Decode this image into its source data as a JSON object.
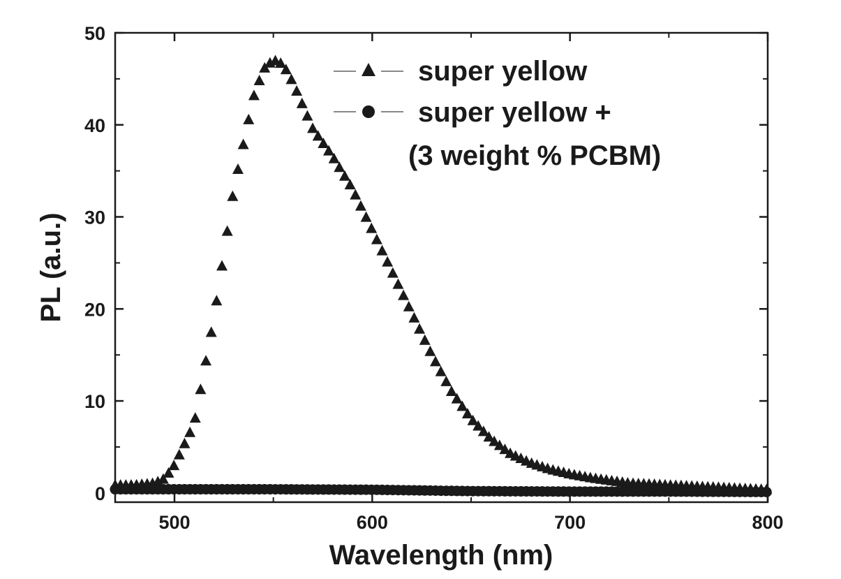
{
  "chart_data": {
    "type": "scatter",
    "title": "",
    "xlabel": "Wavelength (nm)",
    "ylabel": "PL (a.u.)",
    "xlim": [
      470,
      800
    ],
    "ylim": [
      -1,
      50
    ],
    "xticks": [
      500,
      600,
      700,
      800
    ],
    "xtick_labels": [
      "500",
      "600",
      "700",
      "800"
    ],
    "yticks": [
      0,
      10,
      20,
      30,
      40,
      50
    ],
    "ytick_labels": [
      "0",
      "10",
      "20",
      "30",
      "40",
      "50"
    ],
    "grid": false,
    "legend_position": "top-right",
    "marker_color": "#1a1a1a",
    "series": [
      {
        "name": "super yellow",
        "marker": "triangle",
        "x": [
          470,
          480,
          490,
          495,
          500,
          510,
          520,
          530,
          540,
          545,
          550,
          555,
          560,
          570,
          580,
          590,
          600,
          610,
          620,
          630,
          640,
          650,
          660,
          670,
          680,
          690,
          700,
          710,
          720,
          730,
          740,
          750,
          760,
          770,
          780,
          790,
          800
        ],
        "y": [
          0.8,
          0.8,
          1.0,
          1.5,
          3.0,
          7.5,
          19.0,
          33.0,
          43.0,
          46.0,
          47.0,
          46.5,
          44.5,
          39.5,
          36.5,
          33.0,
          28.5,
          24.0,
          19.5,
          15.0,
          11.0,
          8.0,
          5.8,
          4.2,
          3.2,
          2.5,
          2.0,
          1.6,
          1.3,
          1.0,
          0.9,
          0.8,
          0.7,
          0.6,
          0.5,
          0.4,
          0.3
        ]
      },
      {
        "name": "super yellow +\n(3 weight % PCBM)",
        "marker": "circle",
        "x": [
          470,
          500,
          550,
          600,
          650,
          700,
          750,
          800
        ],
        "y": [
          0.4,
          0.4,
          0.4,
          0.35,
          0.2,
          0.15,
          0.15,
          0.1
        ]
      }
    ]
  },
  "legend": {
    "entries": [
      {
        "label": "super yellow",
        "marker": "triangle"
      },
      {
        "label": "super yellow +",
        "marker": "circle"
      }
    ],
    "continuation": "(3 weight % PCBM)"
  }
}
